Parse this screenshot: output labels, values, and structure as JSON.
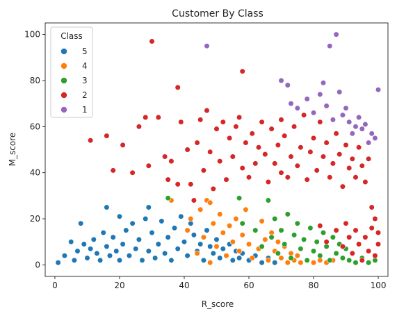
{
  "chart_data": {
    "type": "scatter",
    "title": "Customer By Class",
    "xlabel": "R_score",
    "ylabel": "M_score",
    "xlim": [
      -3,
      103
    ],
    "ylim": [
      -5,
      105
    ],
    "xticks": [
      "0",
      "20",
      "40",
      "60",
      "80",
      "100"
    ],
    "yticks": [
      "0",
      "20",
      "40",
      "60",
      "80",
      "100"
    ],
    "grid": false,
    "legend": {
      "title": "Class",
      "placement": "top-left",
      "entries": [
        "5",
        "4",
        "3",
        "2",
        "1"
      ]
    },
    "colors": {
      "5": "#1f77b4",
      "4": "#ff7f0e",
      "3": "#2ca02c",
      "2": "#d62728",
      "1": "#9467bd"
    },
    "series": [
      {
        "name": "5",
        "color": "#1f77b4",
        "points": [
          [
            1,
            1
          ],
          [
            3,
            4
          ],
          [
            5,
            10
          ],
          [
            6,
            2
          ],
          [
            7,
            6
          ],
          [
            8,
            18
          ],
          [
            9,
            9
          ],
          [
            10,
            3
          ],
          [
            11,
            7
          ],
          [
            12,
            11
          ],
          [
            13,
            5
          ],
          [
            14,
            2
          ],
          [
            15,
            14
          ],
          [
            16,
            25
          ],
          [
            16,
            8
          ],
          [
            17,
            4
          ],
          [
            18,
            12
          ],
          [
            19,
            6
          ],
          [
            20,
            21
          ],
          [
            20,
            2
          ],
          [
            21,
            9
          ],
          [
            22,
            15
          ],
          [
            23,
            4
          ],
          [
            24,
            18
          ],
          [
            25,
            7
          ],
          [
            26,
            11
          ],
          [
            27,
            2
          ],
          [
            28,
            20
          ],
          [
            29,
            25
          ],
          [
            29,
            6
          ],
          [
            30,
            14
          ],
          [
            31,
            3
          ],
          [
            32,
            9
          ],
          [
            33,
            19
          ],
          [
            34,
            5
          ],
          [
            35,
            12
          ],
          [
            36,
            2
          ],
          [
            37,
            16
          ],
          [
            38,
            7
          ],
          [
            39,
            21
          ],
          [
            40,
            10
          ],
          [
            41,
            4
          ],
          [
            42,
            18
          ],
          [
            43,
            13
          ],
          [
            44,
            6
          ],
          [
            45,
            9
          ],
          [
            46,
            2
          ],
          [
            47,
            15
          ],
          [
            48,
            8
          ],
          [
            49,
            5
          ],
          [
            50,
            11
          ],
          [
            51,
            3
          ],
          [
            52,
            7
          ],
          [
            53,
            4
          ],
          [
            54,
            9
          ],
          [
            55,
            2
          ],
          [
            56,
            6
          ],
          [
            57,
            3
          ],
          [
            58,
            5
          ],
          [
            60,
            2
          ],
          [
            62,
            4
          ],
          [
            64,
            1
          ],
          [
            66,
            3
          ],
          [
            68,
            1
          ]
        ]
      },
      {
        "name": "4",
        "color": "#ff7f0e",
        "points": [
          [
            36,
            28
          ],
          [
            41,
            15
          ],
          [
            42,
            20
          ],
          [
            44,
            5
          ],
          [
            45,
            24
          ],
          [
            46,
            12
          ],
          [
            47,
            28
          ],
          [
            48,
            27
          ],
          [
            48,
            1
          ],
          [
            49,
            18
          ],
          [
            50,
            8
          ],
          [
            51,
            22
          ],
          [
            52,
            14
          ],
          [
            53,
            4
          ],
          [
            54,
            17
          ],
          [
            55,
            10
          ],
          [
            56,
            20
          ],
          [
            57,
            6
          ],
          [
            58,
            13
          ],
          [
            59,
            24
          ],
          [
            60,
            9
          ],
          [
            61,
            3
          ],
          [
            62,
            15
          ],
          [
            63,
            7
          ],
          [
            64,
            19
          ],
          [
            65,
            11
          ],
          [
            66,
            2
          ],
          [
            67,
            14
          ],
          [
            68,
            6
          ],
          [
            69,
            10
          ],
          [
            70,
            3
          ],
          [
            71,
            8
          ],
          [
            72,
            1
          ],
          [
            73,
            5
          ],
          [
            74,
            2
          ],
          [
            75,
            4
          ],
          [
            76,
            1
          ],
          [
            78,
            2
          ],
          [
            80,
            1
          ],
          [
            82,
            2
          ],
          [
            84,
            1
          ],
          [
            86,
            2
          ]
        ]
      },
      {
        "name": "3",
        "color": "#2ca02c",
        "points": [
          [
            35,
            29
          ],
          [
            57,
            29
          ],
          [
            58,
            18
          ],
          [
            62,
            15
          ],
          [
            64,
            8
          ],
          [
            66,
            28
          ],
          [
            67,
            12
          ],
          [
            68,
            20
          ],
          [
            69,
            5
          ],
          [
            70,
            15
          ],
          [
            71,
            9
          ],
          [
            72,
            22
          ],
          [
            73,
            3
          ],
          [
            74,
            13
          ],
          [
            75,
            18
          ],
          [
            76,
            7
          ],
          [
            77,
            11
          ],
          [
            78,
            2
          ],
          [
            79,
            16
          ],
          [
            80,
            6
          ],
          [
            81,
            10
          ],
          [
            82,
            4
          ],
          [
            83,
            14
          ],
          [
            84,
            8
          ],
          [
            85,
            2
          ],
          [
            86,
            12
          ],
          [
            87,
            5
          ],
          [
            88,
            9
          ],
          [
            89,
            3
          ],
          [
            90,
            7
          ],
          [
            91,
            2
          ],
          [
            92,
            5
          ],
          [
            93,
            1
          ],
          [
            95,
            3
          ],
          [
            97,
            1
          ],
          [
            99,
            2
          ]
        ]
      },
      {
        "name": "2",
        "color": "#d62728",
        "points": [
          [
            11,
            54
          ],
          [
            16,
            56
          ],
          [
            18,
            41
          ],
          [
            21,
            52
          ],
          [
            24,
            40
          ],
          [
            26,
            60
          ],
          [
            28,
            64
          ],
          [
            29,
            43
          ],
          [
            30,
            97
          ],
          [
            32,
            64
          ],
          [
            34,
            47
          ],
          [
            35,
            37
          ],
          [
            36,
            45
          ],
          [
            38,
            77
          ],
          [
            38,
            35
          ],
          [
            39,
            62
          ],
          [
            41,
            50
          ],
          [
            42,
            35
          ],
          [
            43,
            28
          ],
          [
            44,
            53
          ],
          [
            45,
            63
          ],
          [
            46,
            41
          ],
          [
            47,
            67
          ],
          [
            48,
            49
          ],
          [
            49,
            33
          ],
          [
            50,
            59
          ],
          [
            51,
            45
          ],
          [
            52,
            62
          ],
          [
            53,
            37
          ],
          [
            54,
            55
          ],
          [
            55,
            47
          ],
          [
            56,
            60
          ],
          [
            57,
            64
          ],
          [
            58,
            84
          ],
          [
            58,
            42
          ],
          [
            59,
            53
          ],
          [
            60,
            38
          ],
          [
            61,
            57
          ],
          [
            62,
            44
          ],
          [
            63,
            51
          ],
          [
            64,
            62
          ],
          [
            65,
            48
          ],
          [
            66,
            36
          ],
          [
            67,
            59
          ],
          [
            68,
            44
          ],
          [
            69,
            52
          ],
          [
            70,
            63
          ],
          [
            70,
            40
          ],
          [
            71,
            56
          ],
          [
            72,
            38
          ],
          [
            73,
            47
          ],
          [
            74,
            60
          ],
          [
            75,
            43
          ],
          [
            76,
            51
          ],
          [
            77,
            65
          ],
          [
            78,
            37
          ],
          [
            79,
            49
          ],
          [
            80,
            55
          ],
          [
            81,
            41
          ],
          [
            82,
            17
          ],
          [
            82,
            62
          ],
          [
            83,
            47
          ],
          [
            84,
            53
          ],
          [
            84,
            10
          ],
          [
            85,
            38
          ],
          [
            86,
            44
          ],
          [
            87,
            57
          ],
          [
            87,
            15
          ],
          [
            88,
            48
          ],
          [
            89,
            34
          ],
          [
            89,
            8
          ],
          [
            90,
            52
          ],
          [
            90,
            18
          ],
          [
            91,
            42
          ],
          [
            91,
            12
          ],
          [
            92,
            46
          ],
          [
            92,
            5
          ],
          [
            93,
            38
          ],
          [
            93,
            15
          ],
          [
            94,
            51
          ],
          [
            94,
            9
          ],
          [
            95,
            43
          ],
          [
            95,
            2
          ],
          [
            96,
            36
          ],
          [
            96,
            12
          ],
          [
            97,
            46
          ],
          [
            97,
            6
          ],
          [
            98,
            25
          ],
          [
            98,
            16
          ],
          [
            99,
            20
          ],
          [
            99,
            4
          ],
          [
            100,
            14
          ],
          [
            100,
            9
          ]
        ]
      },
      {
        "name": "1",
        "color": "#9467bd",
        "points": [
          [
            47,
            95
          ],
          [
            70,
            80
          ],
          [
            72,
            78
          ],
          [
            73,
            70
          ],
          [
            75,
            68
          ],
          [
            78,
            72
          ],
          [
            80,
            66
          ],
          [
            82,
            74
          ],
          [
            83,
            79
          ],
          [
            84,
            69
          ],
          [
            85,
            95
          ],
          [
            86,
            63
          ],
          [
            87,
            100
          ],
          [
            88,
            75
          ],
          [
            89,
            65
          ],
          [
            90,
            68
          ],
          [
            91,
            62
          ],
          [
            92,
            57
          ],
          [
            93,
            60
          ],
          [
            94,
            64
          ],
          [
            95,
            59
          ],
          [
            96,
            61
          ],
          [
            97,
            53
          ],
          [
            98,
            57
          ],
          [
            99,
            55
          ],
          [
            100,
            76
          ]
        ]
      }
    ]
  }
}
